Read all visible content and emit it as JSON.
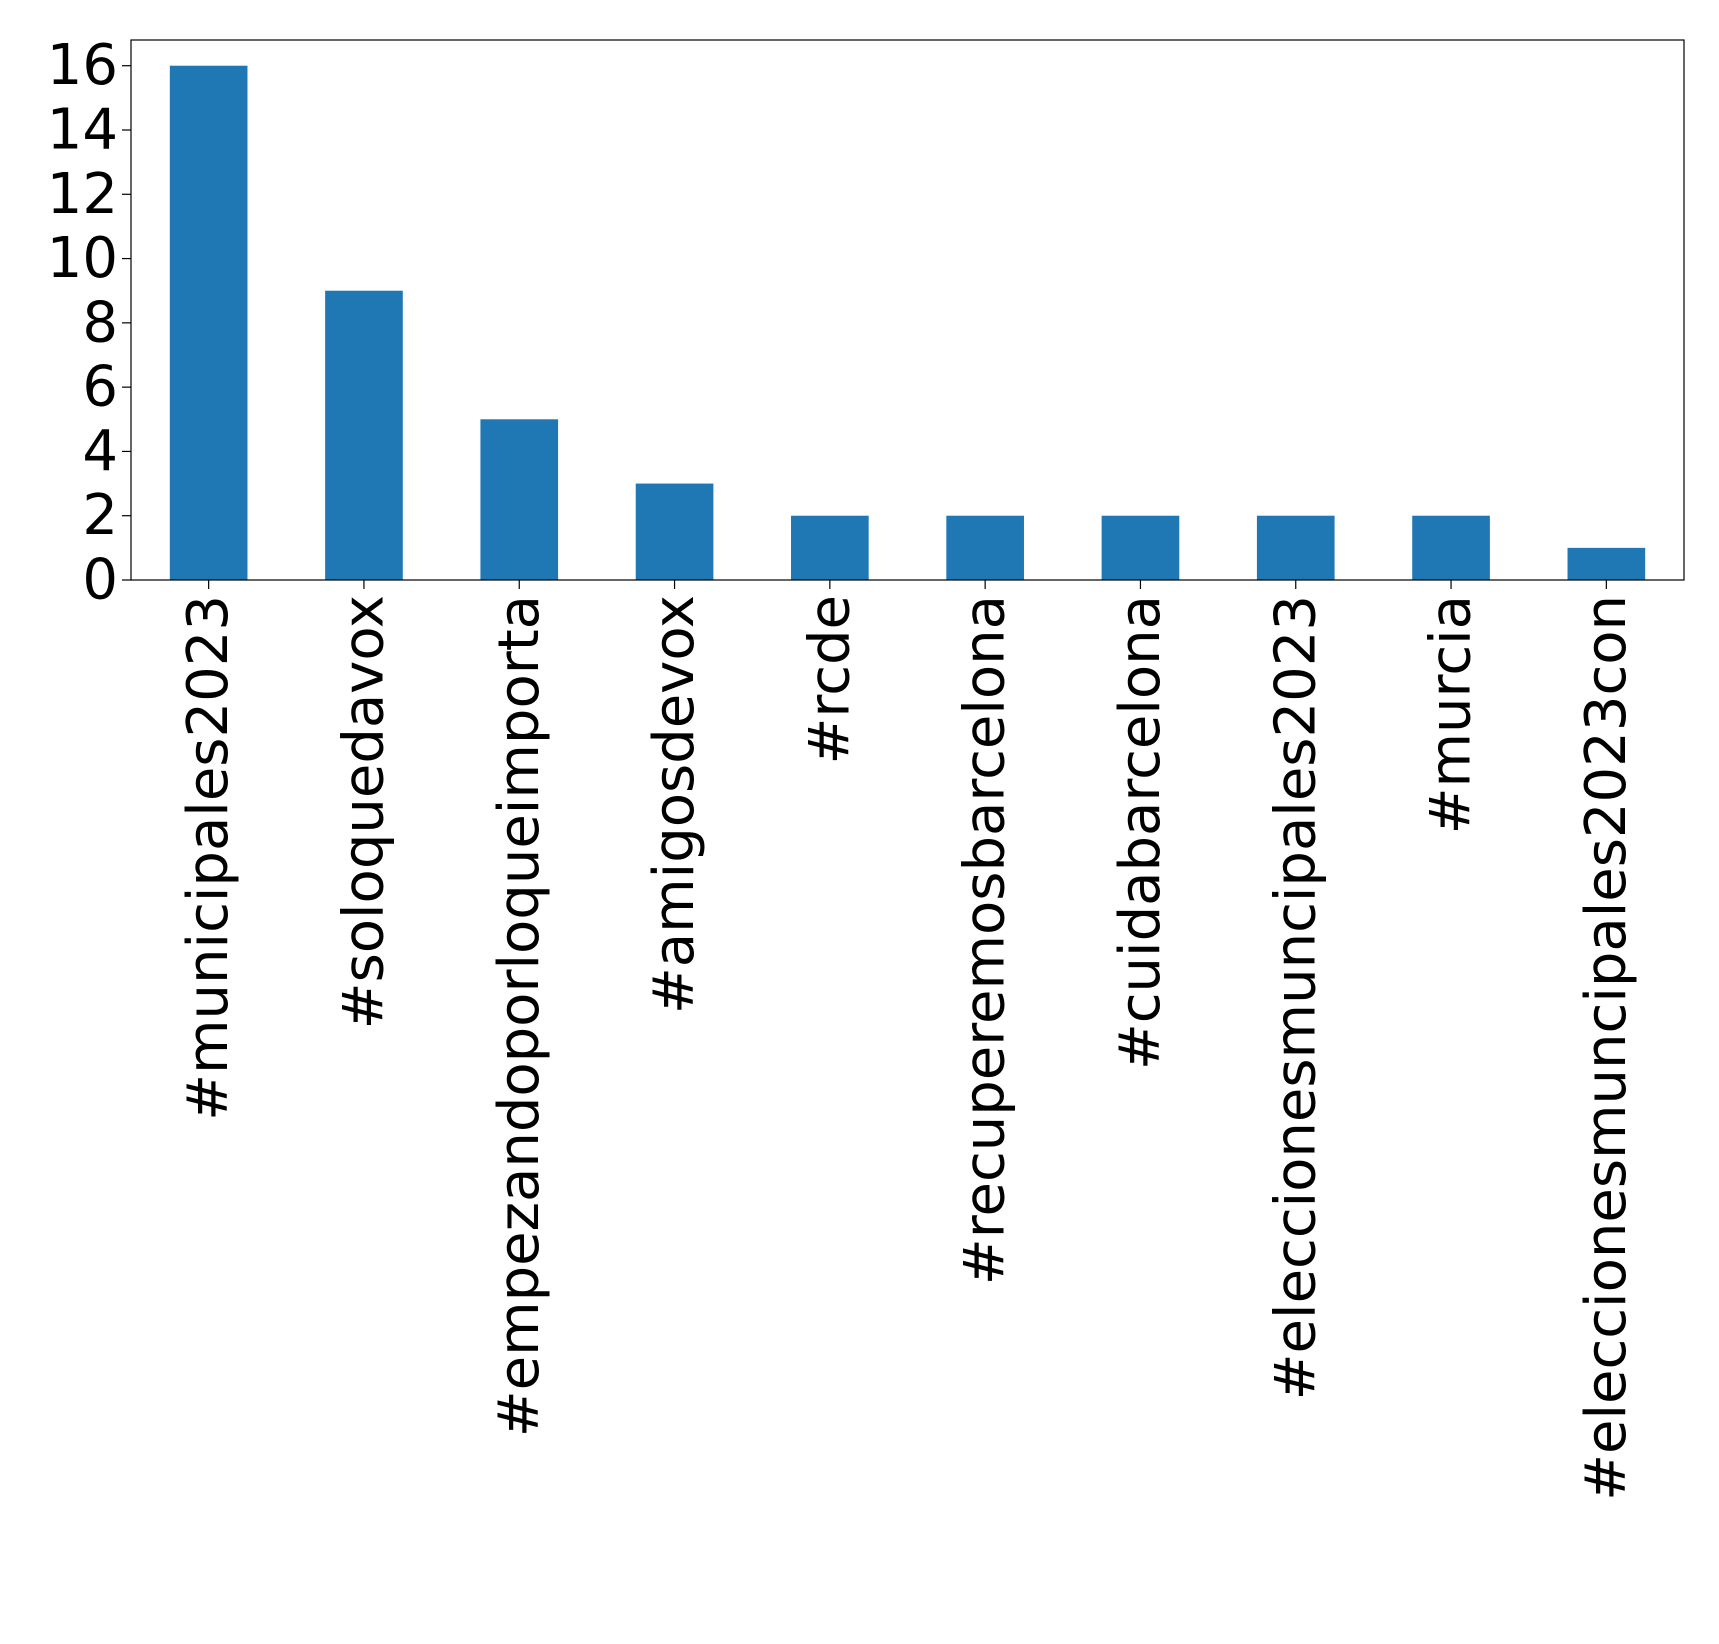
{
  "chart_data": {
    "type": "bar",
    "title": "",
    "xlabel": "",
    "ylabel": "",
    "categories": [
      "#municipales2023",
      "#soloquedavox",
      "#empezandoporloqueimporta",
      "#amigosdevox",
      "#rcde",
      "#recuperemosbarcelona",
      "#cuidabarcelona",
      "#eleccionesmuncipales2023",
      "#murcia",
      "#eleccionesmuncipales2023con"
    ],
    "values": [
      16,
      9,
      5,
      3,
      2,
      2,
      2,
      2,
      2,
      1
    ],
    "ylim": [
      0,
      16.8
    ],
    "yticks": [
      "0",
      "2",
      "4",
      "6",
      "8",
      "10",
      "12",
      "14",
      "16"
    ],
    "bar_color": "#1f77b4",
    "grid": false,
    "legend": "none"
  }
}
